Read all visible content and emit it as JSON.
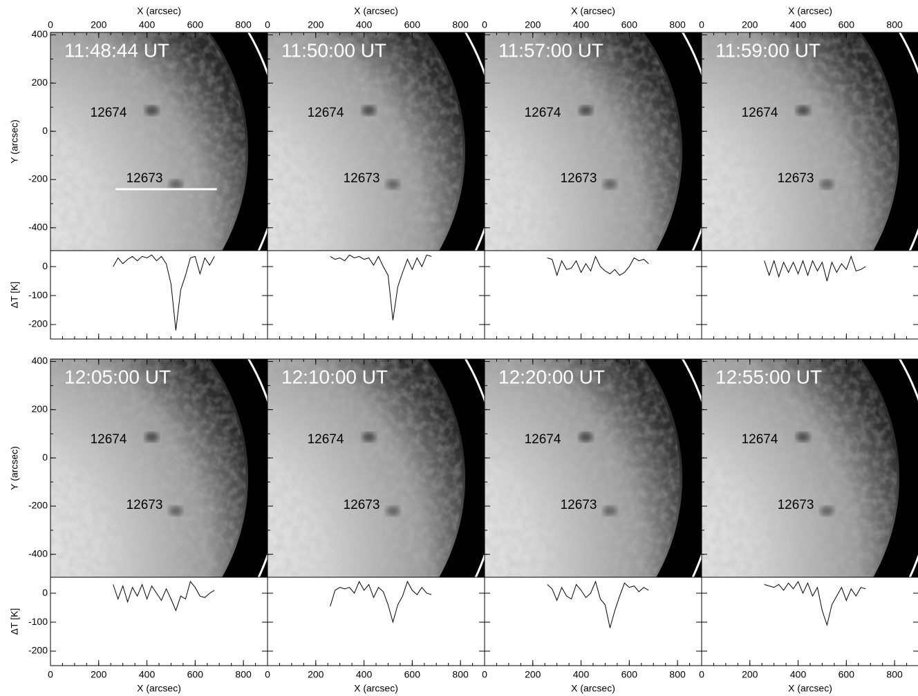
{
  "chart_data": [
    {
      "type": "line",
      "title": "11:48:44 UT",
      "annotations": [
        "12674",
        "12673"
      ],
      "xlabel": "X (arcsec)",
      "ylabel": "Y (arcsec)",
      "y2label": "ΔT [K]",
      "color": "#000000",
      "x": [
        260,
        280,
        300,
        320,
        340,
        360,
        380,
        400,
        420,
        440,
        460,
        480,
        500,
        520,
        540,
        560,
        580,
        600,
        620,
        640,
        660,
        680
      ],
      "values": [
        0,
        30,
        10,
        25,
        35,
        20,
        35,
        30,
        40,
        20,
        35,
        10,
        -60,
        -220,
        -80,
        -30,
        30,
        35,
        -25,
        30,
        5,
        35
      ],
      "xlim": [
        0,
        900
      ],
      "xticks": [
        0,
        200,
        400,
        600,
        800
      ],
      "image_ylim": [
        -495,
        410
      ],
      "image_yticks": [
        400,
        200,
        0,
        -200,
        -400
      ],
      "ylim": [
        -250,
        55
      ],
      "yticks": [
        0,
        -100,
        -200
      ]
    },
    {
      "type": "line",
      "title": "11:50:00 UT",
      "annotations": [
        "12674",
        "12673"
      ],
      "xlabel": "X (arcsec)",
      "color": "#000000",
      "x": [
        260,
        280,
        300,
        320,
        340,
        360,
        380,
        400,
        420,
        440,
        460,
        480,
        500,
        520,
        540,
        560,
        580,
        600,
        620,
        640,
        660,
        680
      ],
      "values": [
        35,
        25,
        30,
        20,
        40,
        30,
        35,
        25,
        30,
        5,
        35,
        0,
        -30,
        -185,
        -70,
        -20,
        25,
        -10,
        30,
        0,
        40,
        35
      ],
      "xlim": [
        0,
        900
      ],
      "xticks": [
        0,
        200,
        400,
        600,
        800
      ],
      "image_ylim": [
        -495,
        410
      ],
      "image_yticks": [
        400,
        200,
        0,
        -200,
        -400
      ],
      "ylim": [
        -250,
        55
      ],
      "yticks": [
        0,
        -100,
        -200
      ]
    },
    {
      "type": "line",
      "title": "11:57:00 UT",
      "annotations": [
        "12674",
        "12673"
      ],
      "xlabel": "X (arcsec)",
      "color": "#000000",
      "x": [
        260,
        280,
        300,
        320,
        340,
        360,
        380,
        400,
        420,
        440,
        460,
        480,
        500,
        520,
        540,
        560,
        580,
        600,
        620,
        640,
        660,
        680
      ],
      "values": [
        30,
        25,
        -30,
        20,
        -10,
        -5,
        20,
        -20,
        10,
        -15,
        35,
        0,
        -15,
        -25,
        -10,
        -30,
        -20,
        0,
        30,
        20,
        25,
        10
      ],
      "xlim": [
        0,
        900
      ],
      "xticks": [
        0,
        200,
        400,
        600,
        800
      ],
      "image_ylim": [
        -495,
        410
      ],
      "image_yticks": [
        400,
        200,
        0,
        -200,
        -400
      ],
      "ylim": [
        -250,
        55
      ],
      "yticks": [
        0,
        -100,
        -200
      ]
    },
    {
      "type": "line",
      "title": "11:59:00 UT",
      "annotations": [
        "12674",
        "12673"
      ],
      "xlabel": "X (arcsec)",
      "color": "#000000",
      "x": [
        260,
        280,
        300,
        320,
        340,
        360,
        380,
        400,
        420,
        440,
        460,
        480,
        500,
        520,
        540,
        560,
        580,
        600,
        620,
        640,
        660,
        680
      ],
      "values": [
        20,
        -30,
        20,
        -35,
        15,
        -20,
        15,
        -25,
        20,
        -30,
        20,
        -15,
        15,
        -50,
        15,
        -20,
        10,
        -10,
        35,
        -15,
        -10,
        0
      ],
      "xlim": [
        0,
        900
      ],
      "xticks": [
        0,
        200,
        400,
        600,
        800
      ],
      "image_ylim": [
        -495,
        410
      ],
      "image_yticks": [
        400,
        200,
        0,
        -200,
        -400
      ],
      "ylim": [
        -250,
        55
      ],
      "yticks": [
        0,
        -100,
        -200
      ]
    },
    {
      "type": "line",
      "title": "12:05:00 UT",
      "annotations": [
        "12674",
        "12673"
      ],
      "xlabel": "X (arcsec)",
      "ylabel": "Y (arcsec)",
      "y2label": "ΔT [K]",
      "color": "#000000",
      "x": [
        260,
        280,
        300,
        320,
        340,
        360,
        380,
        400,
        420,
        440,
        460,
        480,
        500,
        520,
        540,
        560,
        580,
        600,
        620,
        640,
        660,
        680
      ],
      "values": [
        30,
        -20,
        25,
        -30,
        20,
        -10,
        30,
        -20,
        25,
        0,
        -25,
        15,
        -20,
        -60,
        -10,
        -20,
        40,
        20,
        -10,
        -15,
        0,
        10
      ],
      "xlim": [
        0,
        900
      ],
      "xticks": [
        0,
        200,
        400,
        600,
        800
      ],
      "image_ylim": [
        -495,
        410
      ],
      "image_yticks": [
        400,
        200,
        0,
        -200,
        -400
      ],
      "ylim": [
        -250,
        55
      ],
      "yticks": [
        0,
        -100,
        -200
      ]
    },
    {
      "type": "line",
      "title": "12:10:00 UT",
      "annotations": [
        "12674",
        "12673"
      ],
      "xlabel": "X (arcsec)",
      "color": "#000000",
      "x": [
        260,
        280,
        300,
        320,
        340,
        360,
        380,
        400,
        420,
        440,
        460,
        480,
        500,
        520,
        540,
        560,
        580,
        600,
        620,
        640,
        660,
        680
      ],
      "values": [
        -45,
        10,
        20,
        15,
        20,
        0,
        40,
        10,
        30,
        -15,
        20,
        5,
        -40,
        -100,
        -40,
        -10,
        40,
        10,
        -5,
        20,
        0,
        -5
      ],
      "xlim": [
        0,
        900
      ],
      "xticks": [
        0,
        200,
        400,
        600,
        800
      ],
      "image_ylim": [
        -495,
        410
      ],
      "image_yticks": [
        400,
        200,
        0,
        -200,
        -400
      ],
      "ylim": [
        -250,
        55
      ],
      "yticks": [
        0,
        -100,
        -200
      ]
    },
    {
      "type": "line",
      "title": "12:20:00 UT",
      "annotations": [
        "12674",
        "12673"
      ],
      "xlabel": "X (arcsec)",
      "color": "#000000",
      "x": [
        260,
        280,
        300,
        320,
        340,
        360,
        380,
        400,
        420,
        440,
        460,
        480,
        500,
        520,
        540,
        560,
        580,
        600,
        620,
        640,
        660,
        680
      ],
      "values": [
        30,
        15,
        -25,
        20,
        -10,
        -20,
        30,
        10,
        -15,
        0,
        40,
        -20,
        -40,
        -120,
        -60,
        -10,
        35,
        20,
        25,
        5,
        20,
        10
      ],
      "xlim": [
        0,
        900
      ],
      "xticks": [
        0,
        200,
        400,
        600,
        800
      ],
      "image_ylim": [
        -495,
        410
      ],
      "image_yticks": [
        400,
        200,
        0,
        -200,
        -400
      ],
      "ylim": [
        -250,
        55
      ],
      "yticks": [
        0,
        -100,
        -200
      ]
    },
    {
      "type": "line",
      "title": "12:55:00 UT",
      "annotations": [
        "12674",
        "12673"
      ],
      "xlabel": "X (arcsec)",
      "color": "#000000",
      "x": [
        260,
        280,
        300,
        320,
        340,
        360,
        380,
        400,
        420,
        440,
        460,
        480,
        500,
        520,
        540,
        560,
        580,
        600,
        620,
        640,
        660,
        680
      ],
      "values": [
        30,
        25,
        20,
        30,
        10,
        35,
        15,
        40,
        0,
        35,
        -10,
        20,
        -60,
        -110,
        -40,
        -10,
        20,
        -25,
        15,
        -10,
        20,
        15
      ],
      "xlim": [
        0,
        900
      ],
      "xticks": [
        0,
        200,
        400,
        600,
        800
      ],
      "image_ylim": [
        -495,
        410
      ],
      "image_yticks": [
        400,
        200,
        0,
        -200,
        -400
      ],
      "ylim": [
        -250,
        55
      ],
      "yticks": [
        0,
        -100,
        -200
      ]
    }
  ]
}
